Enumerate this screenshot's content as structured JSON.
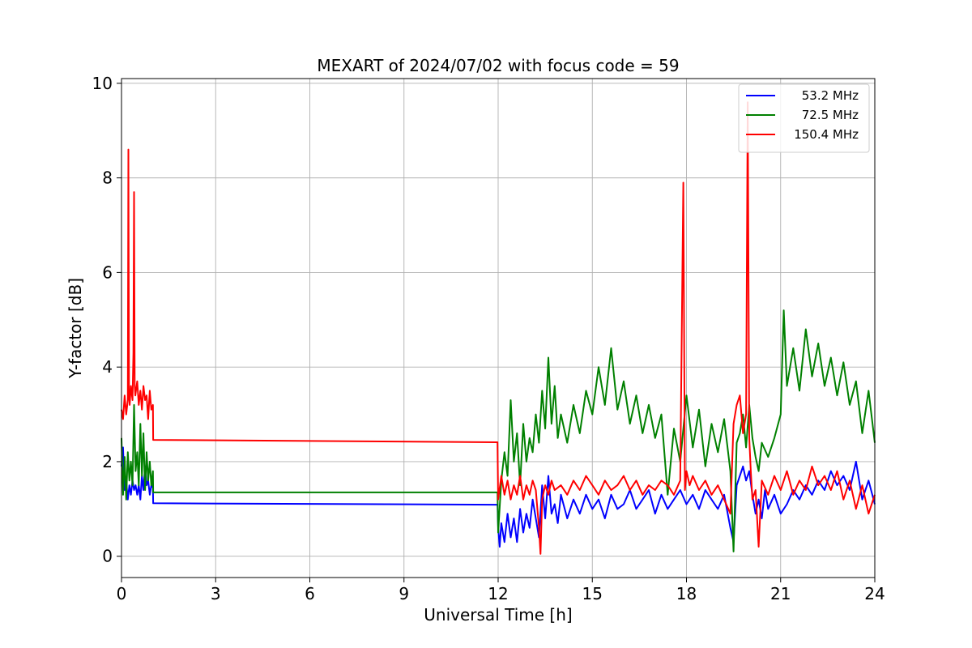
{
  "chart_data": {
    "type": "line",
    "title": "MEXART of 2024/07/02 with focus code = 59",
    "xlabel": "Universal Time [h]",
    "ylabel": "Y-factor [dB]",
    "xlim": [
      0,
      24
    ],
    "ylim": [
      -0.45,
      10.1
    ],
    "xticks": [
      0,
      3,
      6,
      9,
      12,
      15,
      18,
      21,
      24
    ],
    "yticks": [
      0,
      2,
      4,
      6,
      8,
      10
    ],
    "grid": true,
    "legend_position": "top-right",
    "series": [
      {
        "name": "53.2 MHz",
        "color": "#0000ff",
        "x": [
          0,
          0.05,
          0.1,
          0.15,
          0.2,
          0.25,
          0.3,
          0.35,
          0.4,
          0.45,
          0.5,
          0.55,
          0.6,
          0.65,
          0.7,
          0.75,
          0.8,
          0.85,
          0.9,
          0.95,
          1.0,
          1.01,
          11.98,
          12.0,
          12.05,
          12.1,
          12.2,
          12.3,
          12.4,
          12.5,
          12.6,
          12.7,
          12.8,
          12.9,
          13.0,
          13.1,
          13.2,
          13.3,
          13.4,
          13.5,
          13.6,
          13.7,
          13.8,
          13.9,
          14.0,
          14.2,
          14.4,
          14.6,
          14.8,
          15.0,
          15.2,
          15.4,
          15.6,
          15.8,
          16.0,
          16.2,
          16.4,
          16.6,
          16.8,
          17.0,
          17.2,
          17.4,
          17.6,
          17.8,
          18.0,
          18.2,
          18.4,
          18.6,
          18.8,
          19.0,
          19.2,
          19.4,
          19.5,
          19.6,
          19.7,
          19.8,
          19.9,
          20.0,
          20.1,
          20.2,
          20.3,
          20.4,
          20.5,
          20.6,
          20.8,
          21.0,
          21.2,
          21.4,
          21.6,
          21.8,
          22.0,
          22.2,
          22.4,
          22.6,
          22.8,
          23.0,
          23.2,
          23.4,
          23.6,
          23.8,
          24.0
        ],
        "y": [
          1.9,
          2.3,
          1.4,
          1.6,
          1.2,
          1.5,
          1.3,
          1.6,
          1.4,
          1.5,
          1.3,
          1.5,
          1.2,
          1.7,
          1.4,
          1.9,
          1.5,
          1.6,
          1.3,
          1.5,
          1.45,
          1.12,
          1.09,
          0.6,
          0.2,
          0.7,
          0.3,
          0.9,
          0.4,
          0.8,
          0.3,
          1.0,
          0.5,
          0.9,
          0.6,
          1.2,
          0.8,
          0.4,
          1.5,
          0.8,
          1.7,
          0.9,
          1.1,
          0.7,
          1.3,
          0.8,
          1.2,
          0.9,
          1.3,
          1.0,
          1.2,
          0.8,
          1.3,
          1.0,
          1.1,
          1.4,
          1.0,
          1.2,
          1.4,
          0.9,
          1.3,
          1.0,
          1.2,
          1.4,
          1.1,
          1.3,
          1.0,
          1.4,
          1.2,
          1.0,
          1.3,
          0.6,
          0.3,
          1.5,
          1.7,
          1.9,
          1.6,
          1.8,
          1.3,
          0.9,
          1.2,
          0.8,
          1.4,
          1.0,
          1.3,
          0.9,
          1.1,
          1.4,
          1.2,
          1.5,
          1.3,
          1.6,
          1.4,
          1.8,
          1.5,
          1.7,
          1.4,
          2.0,
          1.2,
          1.6,
          1.1
        ]
      },
      {
        "name": "72.5 MHz",
        "color": "#008000",
        "x": [
          0,
          0.05,
          0.1,
          0.15,
          0.2,
          0.25,
          0.3,
          0.35,
          0.4,
          0.45,
          0.5,
          0.55,
          0.6,
          0.65,
          0.7,
          0.75,
          0.8,
          0.85,
          0.9,
          0.95,
          1.0,
          1.01,
          11.98,
          12.0,
          12.1,
          12.2,
          12.3,
          12.4,
          12.5,
          12.6,
          12.7,
          12.8,
          12.9,
          13.0,
          13.1,
          13.2,
          13.3,
          13.4,
          13.5,
          13.6,
          13.7,
          13.8,
          13.9,
          14.0,
          14.2,
          14.4,
          14.6,
          14.8,
          15.0,
          15.2,
          15.4,
          15.6,
          15.8,
          16.0,
          16.2,
          16.4,
          16.6,
          16.8,
          17.0,
          17.2,
          17.4,
          17.6,
          17.8,
          18.0,
          18.2,
          18.4,
          18.6,
          18.8,
          19.0,
          19.2,
          19.4,
          19.5,
          19.6,
          19.7,
          19.8,
          19.9,
          20.0,
          20.1,
          20.2,
          20.3,
          20.4,
          20.6,
          20.8,
          21.0,
          21.1,
          21.2,
          21.4,
          21.6,
          21.8,
          22.0,
          22.2,
          22.4,
          22.6,
          22.8,
          23.0,
          23.2,
          23.4,
          23.6,
          23.8,
          24.0
        ],
        "y": [
          2.5,
          1.3,
          2.1,
          1.2,
          2.2,
          1.6,
          2.0,
          1.5,
          3.2,
          1.8,
          2.2,
          1.5,
          2.8,
          1.7,
          2.6,
          1.4,
          2.2,
          1.6,
          2.0,
          1.5,
          1.8,
          1.35,
          1.35,
          0.5,
          1.6,
          2.2,
          1.7,
          3.3,
          2.0,
          2.6,
          1.5,
          2.8,
          2.0,
          2.5,
          2.2,
          3.0,
          2.4,
          3.5,
          2.7,
          4.2,
          2.8,
          3.6,
          2.5,
          3.0,
          2.4,
          3.2,
          2.6,
          3.5,
          3.0,
          4.0,
          3.2,
          4.4,
          3.1,
          3.7,
          2.8,
          3.4,
          2.6,
          3.2,
          2.5,
          3.0,
          1.3,
          2.7,
          2.0,
          3.4,
          2.3,
          3.1,
          1.9,
          2.8,
          2.2,
          2.9,
          1.8,
          0.1,
          2.4,
          2.6,
          3.0,
          2.3,
          3.2,
          2.5,
          2.1,
          1.8,
          2.4,
          2.1,
          2.5,
          3.0,
          5.2,
          3.6,
          4.4,
          3.5,
          4.8,
          3.8,
          4.5,
          3.6,
          4.2,
          3.4,
          4.1,
          3.2,
          3.7,
          2.6,
          3.5,
          2.4
        ]
      },
      {
        "name": "150.4 MHz",
        "color": "#ff0000",
        "x": [
          0,
          0.05,
          0.1,
          0.15,
          0.2,
          0.22,
          0.24,
          0.26,
          0.3,
          0.35,
          0.38,
          0.4,
          0.42,
          0.44,
          0.5,
          0.55,
          0.6,
          0.65,
          0.7,
          0.75,
          0.8,
          0.85,
          0.9,
          0.95,
          1.0,
          1.01,
          11.98,
          12.0,
          12.1,
          12.2,
          12.3,
          12.4,
          12.5,
          12.6,
          12.7,
          12.8,
          12.9,
          13.0,
          13.1,
          13.2,
          13.3,
          13.35,
          13.4,
          13.5,
          13.6,
          13.7,
          13.8,
          14.0,
          14.2,
          14.4,
          14.6,
          14.8,
          15.0,
          15.2,
          15.4,
          15.6,
          15.8,
          16.0,
          16.2,
          16.4,
          16.6,
          16.8,
          17.0,
          17.2,
          17.4,
          17.6,
          17.8,
          17.9,
          17.95,
          18.0,
          18.1,
          18.2,
          18.4,
          18.6,
          18.8,
          19.0,
          19.2,
          19.4,
          19.5,
          19.6,
          19.7,
          19.8,
          19.9,
          19.95,
          20.0,
          20.05,
          20.1,
          20.2,
          20.3,
          20.4,
          20.6,
          20.8,
          21.0,
          21.2,
          21.4,
          21.6,
          21.8,
          22.0,
          22.2,
          22.4,
          22.6,
          22.8,
          23.0,
          23.2,
          23.4,
          23.6,
          23.8,
          24.0
        ],
        "y": [
          3.1,
          2.9,
          3.4,
          3.0,
          3.3,
          8.6,
          3.5,
          3.2,
          3.6,
          3.3,
          4.3,
          7.7,
          3.6,
          3.4,
          3.7,
          3.2,
          3.5,
          3.1,
          3.6,
          3.3,
          3.4,
          2.9,
          3.5,
          3.1,
          3.2,
          2.46,
          2.41,
          1.2,
          1.7,
          1.3,
          1.6,
          1.2,
          1.5,
          1.3,
          1.7,
          1.2,
          1.5,
          1.3,
          1.6,
          1.4,
          0.6,
          0.05,
          1.2,
          1.5,
          1.3,
          1.6,
          1.4,
          1.5,
          1.3,
          1.6,
          1.4,
          1.7,
          1.5,
          1.3,
          1.6,
          1.4,
          1.5,
          1.7,
          1.4,
          1.6,
          1.3,
          1.5,
          1.4,
          1.6,
          1.5,
          1.3,
          1.6,
          7.9,
          1.4,
          1.8,
          1.5,
          1.7,
          1.4,
          1.6,
          1.3,
          1.5,
          1.2,
          0.9,
          2.8,
          3.2,
          3.4,
          2.6,
          3.0,
          9.6,
          2.5,
          1.8,
          1.2,
          1.4,
          0.2,
          1.6,
          1.3,
          1.7,
          1.4,
          1.8,
          1.3,
          1.6,
          1.4,
          1.9,
          1.5,
          1.7,
          1.4,
          1.8,
          1.2,
          1.6,
          1.0,
          1.5,
          0.9,
          1.3
        ]
      }
    ]
  }
}
